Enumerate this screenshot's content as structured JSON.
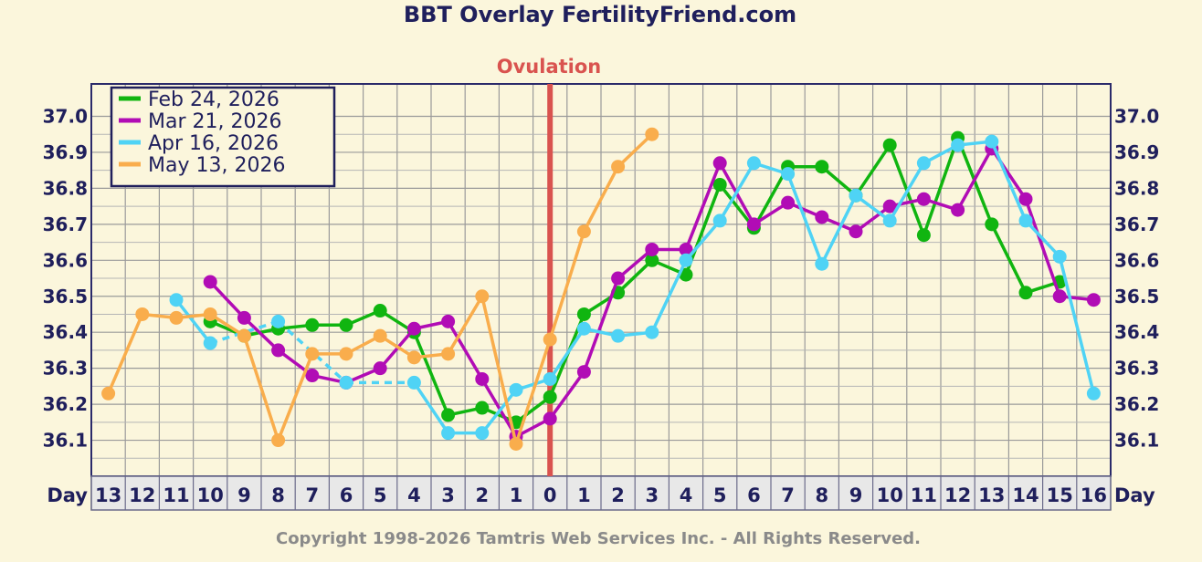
{
  "chart_data": {
    "type": "line",
    "title": "BBT Overlay FertilityFriend.com",
    "ovulation_label": "Ovulation",
    "ovulation_day": "0",
    "x_axis_label": "Day",
    "x": [
      "13",
      "12",
      "11",
      "10",
      "9",
      "8",
      "7",
      "6",
      "5",
      "4",
      "3",
      "2",
      "1",
      "0",
      "1",
      "2",
      "3",
      "4",
      "5",
      "6",
      "7",
      "8",
      "9",
      "10",
      "11",
      "12",
      "13",
      "14",
      "15",
      "16"
    ],
    "y_ticks": [
      "37.0",
      "36.9",
      "36.8",
      "36.7",
      "36.6",
      "36.5",
      "36.4",
      "36.3",
      "36.2",
      "36.1"
    ],
    "ylim": [
      36.0,
      37.09
    ],
    "grid": true,
    "legend_position": "top-left",
    "series": [
      {
        "name": "Feb 24, 2026",
        "color": "#10b510",
        "values": [
          null,
          null,
          null,
          36.43,
          36.39,
          36.41,
          36.42,
          36.42,
          36.46,
          36.4,
          36.17,
          36.19,
          36.15,
          36.22,
          36.45,
          36.51,
          36.6,
          36.56,
          36.81,
          36.69,
          36.86,
          36.86,
          36.78,
          36.92,
          36.67,
          36.94,
          36.7,
          36.51,
          36.54,
          null
        ]
      },
      {
        "name": "Mar 21, 2026",
        "color": "#b10cb5",
        "values": [
          null,
          null,
          null,
          36.54,
          36.44,
          36.35,
          36.28,
          36.26,
          36.3,
          36.41,
          36.43,
          36.27,
          36.11,
          36.16,
          36.29,
          36.55,
          36.63,
          36.63,
          36.87,
          36.7,
          36.76,
          36.72,
          36.68,
          36.75,
          36.77,
          36.74,
          36.91,
          36.77,
          36.5,
          36.49
        ]
      },
      {
        "name": "Apr 16, 2026",
        "color": "#4fd3f5",
        "values": [
          null,
          null,
          36.49,
          36.37,
          null,
          36.43,
          null,
          36.26,
          null,
          36.26,
          36.12,
          36.12,
          36.24,
          36.27,
          36.41,
          36.39,
          36.4,
          36.6,
          36.71,
          36.87,
          36.84,
          36.59,
          36.78,
          36.71,
          36.87,
          36.92,
          36.93,
          36.71,
          36.61,
          36.23
        ]
      },
      {
        "name": "May 13, 2026",
        "color": "#f9ad4c",
        "values": [
          36.23,
          36.45,
          36.44,
          36.45,
          36.39,
          36.1,
          36.34,
          36.34,
          36.39,
          36.33,
          36.34,
          36.5,
          36.09,
          36.38,
          36.68,
          36.86,
          36.95,
          null,
          null,
          null,
          null,
          null,
          null,
          null,
          null,
          null,
          null,
          null,
          null,
          null
        ]
      }
    ]
  },
  "copyright": "Copyright 1998-2026 Tamtris Web Services Inc. - All Rights Reserved."
}
